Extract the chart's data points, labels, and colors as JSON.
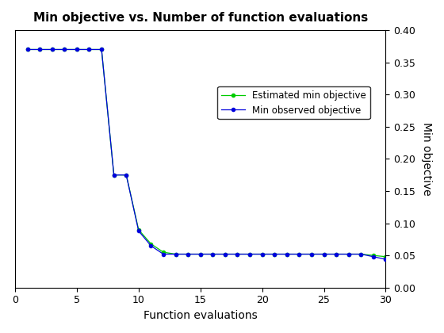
{
  "title": "Min objective vs. Number of function evaluations",
  "xlabel": "Function evaluations",
  "ylabel": "Min objective",
  "xlim": [
    0,
    30
  ],
  "ylim": [
    0,
    0.4
  ],
  "yticks": [
    0,
    0.05,
    0.1,
    0.15,
    0.2,
    0.25,
    0.3,
    0.35,
    0.4
  ],
  "xticks": [
    0,
    5,
    10,
    15,
    20,
    25,
    30
  ],
  "line1_label": "Min observed objective",
  "line1_color": "#0000dd",
  "line1_x": [
    1,
    2,
    3,
    4,
    5,
    6,
    7,
    8,
    9,
    10,
    11,
    12,
    13,
    14,
    15,
    16,
    17,
    18,
    19,
    20,
    21,
    22,
    23,
    24,
    25,
    26,
    27,
    28,
    29,
    30
  ],
  "line1_y": [
    0.37,
    0.37,
    0.37,
    0.37,
    0.37,
    0.37,
    0.37,
    0.175,
    0.175,
    0.088,
    0.065,
    0.052,
    0.052,
    0.052,
    0.052,
    0.052,
    0.052,
    0.052,
    0.052,
    0.052,
    0.052,
    0.052,
    0.052,
    0.052,
    0.052,
    0.052,
    0.052,
    0.052,
    0.048,
    0.044
  ],
  "line2_label": "Estimated min objective",
  "line2_color": "#00cc00",
  "line2_x": [
    1,
    2,
    3,
    4,
    5,
    6,
    7,
    8,
    9,
    10,
    11,
    12,
    13,
    14,
    15,
    16,
    17,
    18,
    19,
    20,
    21,
    22,
    23,
    24,
    25,
    26,
    27,
    28,
    29,
    30
  ],
  "line2_y": [
    0.37,
    0.37,
    0.37,
    0.37,
    0.37,
    0.37,
    0.37,
    0.175,
    0.175,
    0.09,
    0.068,
    0.055,
    0.052,
    0.052,
    0.052,
    0.052,
    0.052,
    0.052,
    0.052,
    0.052,
    0.052,
    0.052,
    0.052,
    0.052,
    0.052,
    0.052,
    0.052,
    0.052,
    0.05,
    0.048
  ],
  "marker": "o",
  "marker_size": 3,
  "linewidth": 0.9,
  "background_color": "#ffffff",
  "title_fontsize": 11,
  "label_fontsize": 10,
  "tick_fontsize": 9
}
